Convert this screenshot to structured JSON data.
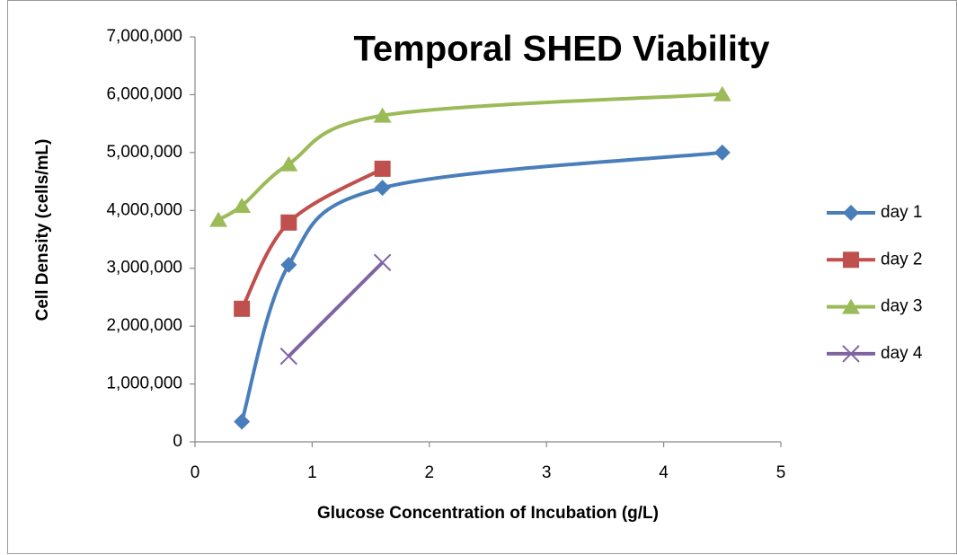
{
  "chart_data": {
    "type": "scatter",
    "title": "Temporal SHED Viability",
    "x_label": "Glucose Concentration of Incubation (g/L)",
    "y_label": "Cell Density (cells/mL)",
    "smooth": true,
    "series": [
      {
        "name": "day 1",
        "color": "#4a7ebb",
        "marker": "diamond",
        "smooth": true,
        "x": [
          0.4,
          0.8,
          1.6,
          4.5
        ],
        "values": [
          350000,
          3060000,
          4390000,
          5000000
        ]
      },
      {
        "name": "day 2",
        "color": "#c0504d",
        "marker": "square",
        "smooth": true,
        "x": [
          0.4,
          0.8,
          1.6
        ],
        "values": [
          2300000,
          3790000,
          4720000
        ]
      },
      {
        "name": "day 3",
        "color": "#9bbb59",
        "marker": "triangle",
        "smooth": true,
        "x": [
          0.2,
          0.4,
          0.8,
          1.6,
          4.5
        ],
        "values": [
          3840000,
          4080000,
          4800000,
          5640000,
          6010000
        ]
      },
      {
        "name": "day 4",
        "color": "#8064a2",
        "marker": "x",
        "smooth": false,
        "x": [
          0.8,
          1.6
        ],
        "values": [
          1480000,
          3100000
        ]
      }
    ],
    "xlim": [
      0,
      5
    ],
    "xticks": [
      0,
      1,
      2,
      3,
      4,
      5
    ],
    "ylim": [
      0,
      7000000
    ],
    "yticks": [
      0,
      {
        "value": 1000000,
        "label": "1,000,000"
      },
      {
        "value": 2000000,
        "label": "2,000,000"
      },
      {
        "value": 3000000,
        "label": "3,000,000"
      },
      {
        "value": 4000000,
        "label": "4,000,000"
      },
      {
        "value": 5000000,
        "label": "5,000,000"
      },
      {
        "value": 6000000,
        "label": "6,000,000"
      },
      {
        "value": 7000000,
        "label": "7,000,000"
      }
    ],
    "grid": false,
    "legend": "right"
  }
}
